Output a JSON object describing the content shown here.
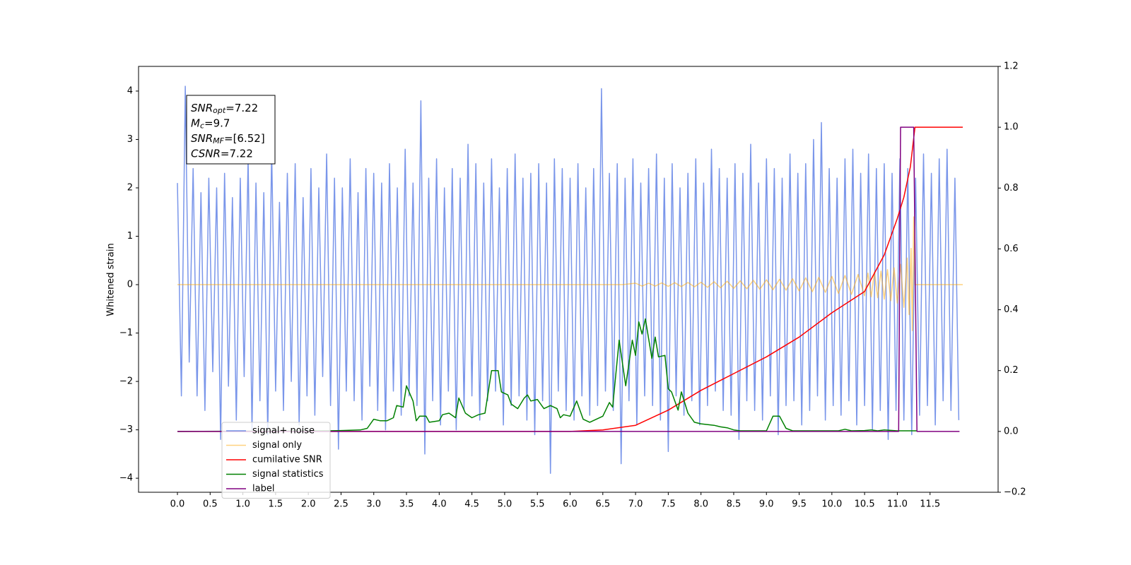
{
  "chart_data": {
    "type": "line",
    "ylabel": "Whitened strain",
    "xlim": [
      -0.594,
      12.54
    ],
    "ylim": [
      -4.29,
      4.51
    ],
    "y2lim": [
      -0.2,
      1.2
    ],
    "xticks": [
      {
        "value": 0,
        "label": "0.0"
      },
      0.5,
      {
        "value": 1,
        "label": "1.0"
      },
      1.5,
      {
        "value": 2,
        "label": "2.0"
      },
      2.5,
      {
        "value": 3,
        "label": "3.0"
      },
      3.5,
      {
        "value": 4,
        "label": "4.0"
      },
      4.5,
      {
        "value": 5,
        "label": "5.0"
      },
      5.5,
      {
        "value": 6,
        "label": "6.0"
      },
      6.5,
      {
        "value": 7,
        "label": "7.0"
      },
      7.5,
      {
        "value": 8,
        "label": "8.0"
      },
      8.5,
      {
        "value": 9,
        "label": "9.0"
      },
      9.5,
      {
        "value": 10,
        "label": "10.0"
      },
      10.5,
      {
        "value": 11,
        "label": "11.0"
      },
      11.5
    ],
    "yticks": [
      {
        "value": -4,
        "label": "−4"
      },
      {
        "value": -3,
        "label": "−3"
      },
      {
        "value": -2,
        "label": "−2"
      },
      {
        "value": -1,
        "label": "−1"
      },
      0,
      1,
      2,
      3,
      4
    ],
    "y2ticks": [
      {
        "value": -0.2,
        "label": "−0.2"
      },
      {
        "value": 0,
        "label": "0.0"
      },
      0.2,
      0.4,
      0.6,
      0.8,
      {
        "value": 1,
        "label": "1.0"
      },
      1.2
    ],
    "legend": "lower left",
    "annotation": [
      {
        "base": "SNR",
        "sub": "opt",
        "text": "=7.22"
      },
      {
        "base": "M",
        "sub": "c",
        "text": "=9.7"
      },
      {
        "base": "SNR",
        "sub": "MF",
        "text": "=[6.52]"
      },
      {
        "base": "CSNR",
        "text": "=7.22"
      }
    ],
    "series": [
      {
        "name": "signal+ noise",
        "color": "#4169e1",
        "alpha": 0.7,
        "x": [
          0,
          0.06,
          0.12,
          0.18,
          0.24,
          0.3,
          0.36,
          0.42,
          0.48,
          0.54,
          0.6,
          0.66,
          0.72,
          0.78,
          0.84,
          0.9,
          0.96,
          1.02,
          1.08,
          1.14,
          1.2,
          1.26,
          1.32,
          1.38,
          1.44,
          1.5,
          1.56,
          1.62,
          1.68,
          1.74,
          1.8,
          1.86,
          1.92,
          1.98,
          2.04,
          2.1,
          2.16,
          2.22,
          2.28,
          2.34,
          2.4,
          2.46,
          2.52,
          2.58,
          2.64,
          2.7,
          2.76,
          2.82,
          2.88,
          2.94,
          3,
          3.06,
          3.12,
          3.18,
          3.24,
          3.3,
          3.36,
          3.42,
          3.48,
          3.54,
          3.6,
          3.66,
          3.72,
          3.78,
          3.84,
          3.9,
          3.96,
          4.02,
          4.08,
          4.14,
          4.2,
          4.26,
          4.32,
          4.38,
          4.44,
          4.5,
          4.56,
          4.62,
          4.68,
          4.74,
          4.8,
          4.86,
          4.92,
          4.98,
          5.04,
          5.1,
          5.16,
          5.22,
          5.28,
          5.34,
          5.4,
          5.46,
          5.52,
          5.58,
          5.64,
          5.7,
          5.76,
          5.82,
          5.88,
          5.94,
          6,
          6.06,
          6.12,
          6.18,
          6.24,
          6.3,
          6.36,
          6.42,
          6.48,
          6.54,
          6.6,
          6.66,
          6.72,
          6.78,
          6.84,
          6.9,
          6.96,
          7.02,
          7.08,
          7.14,
          7.2,
          7.26,
          7.32,
          7.38,
          7.44,
          7.5,
          7.56,
          7.62,
          7.68,
          7.74,
          7.8,
          7.86,
          7.92,
          7.98,
          8.04,
          8.1,
          8.16,
          8.22,
          8.28,
          8.34,
          8.4,
          8.46,
          8.52,
          8.58,
          8.64,
          8.7,
          8.76,
          8.82,
          8.88,
          8.94,
          9,
          9.06,
          9.12,
          9.18,
          9.24,
          9.3,
          9.36,
          9.42,
          9.48,
          9.54,
          9.6,
          9.66,
          9.72,
          9.78,
          9.84,
          9.9,
          9.96,
          10.02,
          10.08,
          10.14,
          10.2,
          10.26,
          10.32,
          10.38,
          10.44,
          10.5,
          10.56,
          10.62,
          10.68,
          10.74,
          10.8,
          10.86,
          10.92,
          10.98,
          11.04,
          11.1,
          11.16,
          11.22,
          11.28,
          11.34,
          11.4,
          11.46,
          11.52,
          11.58,
          11.64,
          11.7,
          11.76,
          11.82,
          11.88,
          11.94
        ],
        "values": [
          2.1,
          -2.3,
          4.1,
          -1.6,
          2.4,
          -2.3,
          1.9,
          -2.6,
          2.2,
          -1.8,
          2.0,
          -3.2,
          2.3,
          -2.1,
          1.8,
          -2.8,
          2.2,
          -1.9,
          2.6,
          -3.0,
          2.1,
          -2.4,
          1.9,
          -3.1,
          2.8,
          -2.2,
          1.7,
          -2.6,
          2.3,
          -2.0,
          2.5,
          -2.9,
          1.8,
          -2.3,
          2.4,
          -2.7,
          2.0,
          -1.9,
          2.7,
          -2.5,
          2.2,
          -3.4,
          2.0,
          -2.2,
          2.6,
          -2.4,
          1.9,
          -2.8,
          2.4,
          -2.1,
          2.3,
          -2.6,
          2.1,
          -3.0,
          2.5,
          -2.2,
          2.0,
          -2.7,
          2.8,
          -2.3,
          2.1,
          -2.5,
          3.8,
          -3.5,
          2.2,
          -2.4,
          2.6,
          -2.9,
          2.0,
          -2.2,
          2.4,
          -3.0,
          2.2,
          -2.6,
          2.9,
          -2.3,
          2.5,
          -2.8,
          2.1,
          -2.4,
          2.6,
          -2.2,
          2.0,
          -2.9,
          2.4,
          -2.5,
          2.7,
          -2.3,
          2.2,
          -2.8,
          2.3,
          -3.1,
          2.5,
          -2.4,
          2.1,
          -3.9,
          2.6,
          -2.2,
          2.4,
          -2.6,
          2.2,
          -2.8,
          2.5,
          -2.3,
          2.0,
          -2.7,
          2.4,
          -2.5,
          4.05,
          -2.2,
          2.3,
          -2.6,
          2.5,
          -3.7,
          2.2,
          -2.4,
          2.6,
          -2.9,
          2.1,
          -2.3,
          2.4,
          -2.5,
          2.7,
          -2.8,
          2.2,
          -3.45,
          2.5,
          -2.3,
          2.0,
          -2.7,
          2.3,
          -2.4,
          2.6,
          -2.9,
          2.1,
          -2.5,
          2.8,
          -2.2,
          2.4,
          -2.6,
          2.2,
          -2.7,
          2.5,
          -3.2,
          2.3,
          -2.4,
          2.9,
          -2.6,
          2.1,
          -2.8,
          2.6,
          -2.3,
          2.4,
          -3.1,
          2.2,
          -2.5,
          2.7,
          -2.4,
          2.3,
          -2.9,
          2.5,
          -2.6,
          3.0,
          -2.3,
          3.35,
          -2.8,
          2.4,
          -2.5,
          2.2,
          -2.7,
          2.6,
          -2.4,
          2.8,
          -2.9,
          2.3,
          -2.5,
          2.7,
          -3.0,
          2.4,
          -2.6,
          2.5,
          -3.2,
          2.3,
          -2.6,
          2.6,
          -2.8,
          2.4,
          -3.1,
          2.2,
          -2.7,
          2.7,
          -2.5,
          2.3,
          -2.9,
          2.6,
          -2.4,
          2.8,
          -2.6,
          2.2,
          -2.8
        ]
      },
      {
        "name": "signal only",
        "color": "#ffa500",
        "alpha": 0.5,
        "x": [
          0,
          6.8,
          7.0,
          7.1,
          7.2,
          7.3,
          7.4,
          7.5,
          7.6,
          7.7,
          7.8,
          7.9,
          8.0,
          8.1,
          8.2,
          8.3,
          8.4,
          8.5,
          8.6,
          8.7,
          8.8,
          8.9,
          9.0,
          9.1,
          9.2,
          9.3,
          9.4,
          9.5,
          9.6,
          9.7,
          9.8,
          9.9,
          10.0,
          10.1,
          10.2,
          10.3,
          10.4,
          10.5,
          10.55,
          10.6,
          10.65,
          10.7,
          10.75,
          10.8,
          10.85,
          10.9,
          10.95,
          11.0,
          11.05,
          11.1,
          11.15,
          11.18,
          11.21,
          11.23,
          11.25,
          11.27,
          12.0
        ],
        "values": [
          0,
          0,
          0.03,
          -0.03,
          0.03,
          -0.03,
          0.035,
          -0.035,
          0.04,
          -0.04,
          0.045,
          -0.045,
          0.05,
          -0.055,
          0.06,
          -0.065,
          0.07,
          -0.075,
          0.08,
          -0.085,
          0.09,
          -0.095,
          0.1,
          -0.105,
          0.11,
          -0.115,
          0.12,
          -0.13,
          0.14,
          -0.145,
          0.15,
          -0.16,
          0.17,
          -0.18,
          0.19,
          -0.2,
          0.21,
          -0.23,
          0.24,
          -0.25,
          0.26,
          -0.27,
          0.28,
          -0.3,
          0.31,
          -0.33,
          0.35,
          -0.38,
          0.42,
          -0.47,
          0.55,
          -0.62,
          0.75,
          -0.95,
          1.4,
          0,
          0
        ]
      },
      {
        "name": "cumilative SNR",
        "color": "#ff0000",
        "alpha": 1,
        "axis": "y2",
        "x": [
          0,
          6.0,
          6.5,
          7.0,
          7.5,
          8.0,
          8.5,
          9.0,
          9.5,
          10.0,
          10.5,
          10.8,
          11.0,
          11.1,
          11.2,
          11.27,
          12.0
        ],
        "values": [
          0,
          0,
          0.005,
          0.02,
          0.07,
          0.135,
          0.19,
          0.245,
          0.31,
          0.39,
          0.46,
          0.58,
          0.7,
          0.77,
          0.87,
          1.0,
          1.0
        ]
      },
      {
        "name": "signal statistics",
        "color": "#008000",
        "alpha": 1,
        "axis": "y2",
        "x": [
          0,
          2.3,
          2.5,
          2.8,
          2.9,
          3.0,
          3.1,
          3.2,
          3.3,
          3.35,
          3.45,
          3.5,
          3.6,
          3.65,
          3.7,
          3.8,
          3.85,
          4.0,
          4.05,
          4.15,
          4.25,
          4.3,
          4.4,
          4.5,
          4.6,
          4.7,
          4.8,
          4.9,
          4.95,
          5.05,
          5.1,
          5.2,
          5.3,
          5.35,
          5.4,
          5.5,
          5.6,
          5.7,
          5.8,
          5.85,
          5.9,
          6.0,
          6.1,
          6.2,
          6.3,
          6.5,
          6.6,
          6.65,
          6.75,
          6.85,
          6.95,
          7.0,
          7.05,
          7.1,
          7.15,
          7.25,
          7.3,
          7.35,
          7.45,
          7.5,
          7.55,
          7.65,
          7.7,
          7.8,
          7.9,
          8.0,
          8.2,
          8.3,
          8.4,
          8.5,
          8.6,
          9.0,
          9.1,
          9.2,
          9.3,
          9.4,
          10.1,
          10.2,
          10.3,
          10.5,
          10.6,
          10.7,
          10.8,
          11.0,
          11.3
        ],
        "values": [
          0,
          0.002,
          0.003,
          0.005,
          0.01,
          0.04,
          0.035,
          0.035,
          0.045,
          0.085,
          0.08,
          0.15,
          0.1,
          0.035,
          0.05,
          0.05,
          0.03,
          0.035,
          0.055,
          0.06,
          0.045,
          0.11,
          0.06,
          0.045,
          0.055,
          0.06,
          0.2,
          0.2,
          0.13,
          0.12,
          0.09,
          0.075,
          0.11,
          0.12,
          0.1,
          0.105,
          0.075,
          0.085,
          0.075,
          0.045,
          0.055,
          0.05,
          0.1,
          0.04,
          0.03,
          0.05,
          0.095,
          0.08,
          0.3,
          0.15,
          0.3,
          0.25,
          0.36,
          0.32,
          0.37,
          0.24,
          0.31,
          0.245,
          0.25,
          0.14,
          0.13,
          0.07,
          0.13,
          0.06,
          0.03,
          0.025,
          0.02,
          0.015,
          0.012,
          0.005,
          0.002,
          0.002,
          0.05,
          0.05,
          0.01,
          0.002,
          0.002,
          0.007,
          0.002,
          0.003,
          0.005,
          0.002,
          0.005,
          0.002,
          0.002
        ]
      },
      {
        "name": "label",
        "color": "#800080",
        "alpha": 1,
        "axis": "y2",
        "x": [
          0,
          11.02,
          11.05,
          11.25,
          11.3,
          11.95
        ],
        "values": [
          0,
          0,
          1,
          1,
          0,
          0
        ]
      }
    ]
  }
}
